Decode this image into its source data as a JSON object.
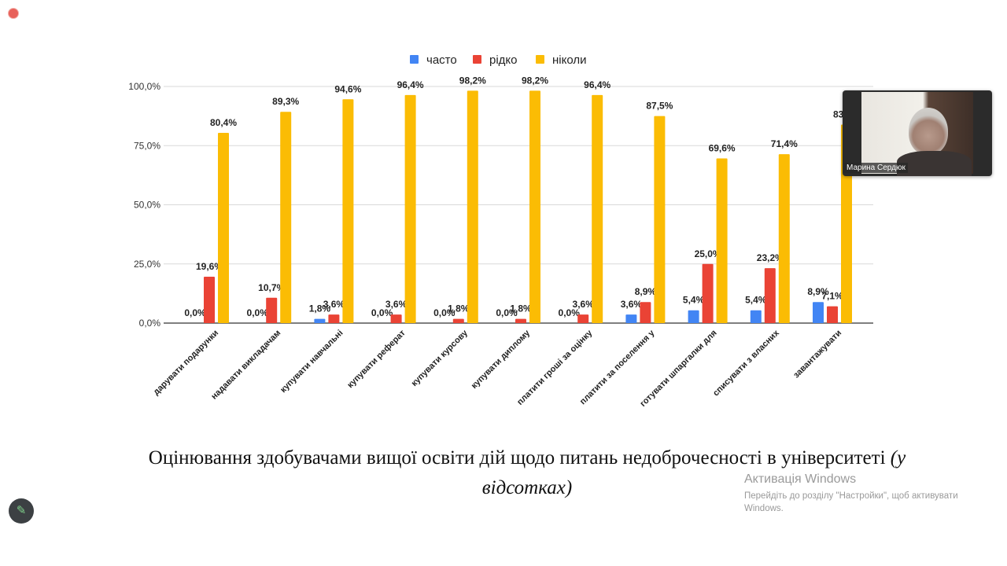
{
  "chart_data": {
    "type": "bar",
    "categories": [
      "дарувати подарунки",
      "надавати викладачам",
      "купувати навчальні",
      "купувати реферат",
      "купувати курсову",
      "купувати диплому",
      "платити гроші за оцінку",
      "платити за поселення у",
      "готувати шпаргалки для",
      "списувати з власних",
      "завантажувати"
    ],
    "series": [
      {
        "name": "часто",
        "color": "#4285f4",
        "values": [
          0.0,
          0.0,
          1.8,
          0.0,
          0.0,
          0.0,
          0.0,
          3.6,
          5.4,
          5.4,
          8.9
        ],
        "labels": [
          "0,0%",
          "0,0%",
          "1,8%",
          "0,0%",
          "0,0%",
          "0,0%",
          "0,0%",
          "3,6%",
          "5,4%",
          "5,4%",
          "8,9%"
        ]
      },
      {
        "name": "рідко",
        "color": "#ea4335",
        "values": [
          19.6,
          10.7,
          3.6,
          3.6,
          1.8,
          1.8,
          3.6,
          8.9,
          25.0,
          23.2,
          7.1
        ],
        "labels": [
          "19,6%",
          "10,7%",
          "3,6%",
          "3,6%",
          "1,8%",
          "1,8%",
          "3,6%",
          "8,9%",
          "25,0%",
          "23,2%",
          "7,1%"
        ]
      },
      {
        "name": "ніколи",
        "color": "#fbbc04",
        "values": [
          80.4,
          89.3,
          94.6,
          96.4,
          98.2,
          98.2,
          96.4,
          87.5,
          69.6,
          71.4,
          83.9
        ],
        "labels": [
          "80,4%",
          "89,3%",
          "94,6%",
          "96,4%",
          "98,2%",
          "98,2%",
          "96,4%",
          "87,5%",
          "69,6%",
          "71,4%",
          "83,9%"
        ]
      }
    ],
    "yticks": [
      "0,0%",
      "25,0%",
      "50,0%",
      "75,0%",
      "100,0%"
    ],
    "ylim": [
      0,
      100
    ],
    "legend": "top",
    "grid": true
  },
  "caption": {
    "main": "Оцінювання здобувачами вищої освіти дій щодо питань недоброчесності в університеті",
    "italic": "(у відсотках)"
  },
  "video": {
    "participant": "Марина Сердюк"
  },
  "watermark": {
    "title": "Активація Windows",
    "text": "Перейдіть до розділу \"Настройки\", щоб активувати Windows."
  }
}
